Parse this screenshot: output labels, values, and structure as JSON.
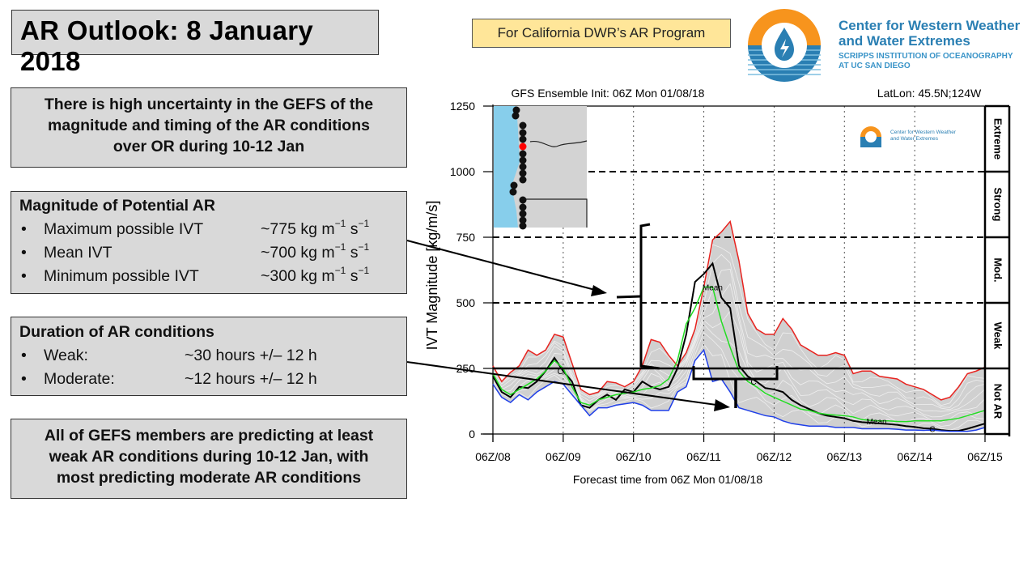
{
  "header": {
    "title": "AR Outlook: 8 January 2018",
    "program_label": "For California DWR’s AR Program",
    "org_name_line1": "Center for Western Weather",
    "org_name_line2": "and Water Extremes",
    "org_sub_line1": "SCRIPPS INSTITUTION OF OCEANOGRAPHY",
    "org_sub_line2": "AT UC SAN DIEGO",
    "colors": {
      "logo_orange": "#f7941d",
      "logo_blue": "#2a7fb3",
      "program_bg": "#ffe699",
      "box_bg": "#d9d9d9"
    }
  },
  "summary": {
    "line1": "There is high uncertainty in the GEFS of the",
    "line2": "magnitude and timing of the AR conditions",
    "line3": "over OR during 10-12 Jan"
  },
  "magnitude": {
    "heading": "Magnitude of Potential AR",
    "items": [
      {
        "label": "Maximum possible IVT",
        "value": "~775 kg m",
        "exp1": "−1",
        "unit2": " s",
        "exp2": "−1"
      },
      {
        "label": "Mean IVT",
        "value": "~700 kg m",
        "exp1": "−1",
        "unit2": " s",
        "exp2": "−1"
      },
      {
        "label": "Minimum possible IVT",
        "value": "~300 kg m",
        "exp1": "−1",
        "unit2": " s",
        "exp2": "−1"
      }
    ]
  },
  "duration": {
    "heading": "Duration of AR conditions",
    "items": [
      {
        "label": "Weak:",
        "value": "~30 hours +/– 12 h"
      },
      {
        "label": "Moderate:",
        "value": "~12 hours +/– 12 h"
      }
    ]
  },
  "conclusion": {
    "line1": "All of GEFS members are predicting at least",
    "line2": "weak AR conditions during 10-12 Jan, with",
    "line3": "most predicting moderate AR conditions"
  },
  "chart_data": {
    "type": "line",
    "title": "GFS Ensemble Init: 06Z Mon 01/08/18",
    "location_label": "LatLon: 45.5N;124W",
    "xlabel": "Forecast time from 06Z Mon 01/08/18",
    "ylabel": "IVT Magnitude [kg/m/s]",
    "x_ticks": [
      "06Z/08",
      "06Z/09",
      "06Z/10",
      "06Z/11",
      "06Z/12",
      "06Z/13",
      "06Z/14",
      "06Z/15"
    ],
    "x_unit": "hours since init",
    "xlim": [
      0,
      168
    ],
    "y_ticks": [
      0,
      250,
      500,
      750,
      1000,
      1250
    ],
    "ylim": [
      0,
      1250
    ],
    "grid": "vertical dotted at x ticks",
    "thresholds": [
      250,
      500,
      750,
      1000
    ],
    "categories_right": [
      {
        "label": "Not AR",
        "range": [
          0,
          250
        ]
      },
      {
        "label": "Weak",
        "range": [
          250,
          500
        ]
      },
      {
        "label": "Mod.",
        "range": [
          500,
          750
        ]
      },
      {
        "label": "Strong",
        "range": [
          750,
          1000
        ]
      },
      {
        "label": "Extreme",
        "range": [
          1000,
          1250
        ]
      }
    ],
    "x": [
      0,
      6,
      12,
      18,
      24,
      30,
      36,
      42,
      48,
      54,
      60,
      66,
      72,
      78,
      84,
      90,
      96,
      102,
      108,
      114,
      120,
      126,
      132,
      138,
      144,
      150,
      156,
      162,
      168
    ],
    "series": [
      {
        "name": "Max",
        "color": "#e8231f",
        "values": [
          260,
          200,
          235,
          260,
          320,
          300,
          320,
          380,
          370,
          270,
          170,
          150,
          160,
          200,
          195,
          180,
          200,
          260,
          360,
          350,
          300,
          260,
          310,
          400,
          560,
          740,
          770,
          810,
          660
        ]
      },
      {
        "name": "Control",
        "color": "#000000",
        "label": "C",
        "values": [
          220,
          160,
          140,
          180,
          175,
          200,
          240,
          290,
          240,
          200,
          110,
          100,
          130,
          150,
          130,
          170,
          160,
          200,
          180,
          170,
          180,
          250,
          380,
          580,
          610,
          650,
          520,
          480,
          260
        ]
      },
      {
        "name": "Mean",
        "color": "#22dd22",
        "label": "Mean",
        "values": [
          230,
          170,
          150,
          170,
          190,
          210,
          240,
          280,
          250,
          180,
          120,
          110,
          130,
          140,
          150,
          155,
          160,
          170,
          175,
          185,
          210,
          280,
          420,
          480,
          560,
          560,
          430,
          330,
          240
        ]
      },
      {
        "name": "Min",
        "color": "#1f3fe8",
        "values": [
          190,
          140,
          120,
          150,
          130,
          160,
          180,
          200,
          190,
          150,
          110,
          70,
          100,
          100,
          110,
          115,
          120,
          110,
          90,
          90,
          90,
          160,
          180,
          280,
          320,
          200,
          210,
          160,
          100
        ]
      }
    ],
    "series_extended": {
      "x": [
        168,
        174,
        180,
        186,
        192,
        198,
        204,
        210,
        216,
        222,
        228,
        234,
        240,
        246,
        252,
        258,
        264,
        270,
        276,
        282,
        288,
        294,
        300,
        306,
        312,
        318,
        324,
        330,
        336
      ],
      "Max": [
        660,
        460,
        400,
        380,
        380,
        440,
        400,
        340,
        320,
        300,
        300,
        310,
        300,
        230,
        240,
        240,
        220,
        215,
        210,
        190,
        180,
        170,
        150,
        130,
        140,
        180,
        230,
        240,
        255
      ],
      "Control": [
        260,
        220,
        200,
        175,
        170,
        160,
        130,
        110,
        95,
        80,
        70,
        65,
        60,
        50,
        45,
        43,
        40,
        38,
        35,
        30,
        27,
        22,
        20,
        15,
        12,
        12,
        20,
        30,
        40
      ],
      "Mean": [
        240,
        200,
        180,
        155,
        140,
        125,
        110,
        95,
        90,
        80,
        75,
        72,
        70,
        65,
        55,
        52,
        50,
        50,
        48,
        47,
        50,
        50,
        50,
        50,
        55,
        60,
        70,
        80,
        90
      ],
      "Min": [
        100,
        90,
        80,
        70,
        65,
        50,
        40,
        35,
        30,
        30,
        30,
        25,
        25,
        25,
        20,
        20,
        20,
        20,
        18,
        15,
        15,
        14,
        15,
        12,
        10,
        10,
        10,
        15,
        25
      ]
    },
    "annotations": [
      {
        "text": "Brace spanning 250–765 kg/m/s at 06Z/10, arrow from Magnitude box"
      },
      {
        "text": "Brace spanning ~06Z/11–06Z/12 along 250 threshold, arrow from Duration box"
      }
    ],
    "inset_map": {
      "label": "Oregon coast map with station points, selected point red",
      "selected_color": "#ff0000",
      "ocean_color": "#87ceeb",
      "land_color": "#d3d3d3"
    }
  }
}
